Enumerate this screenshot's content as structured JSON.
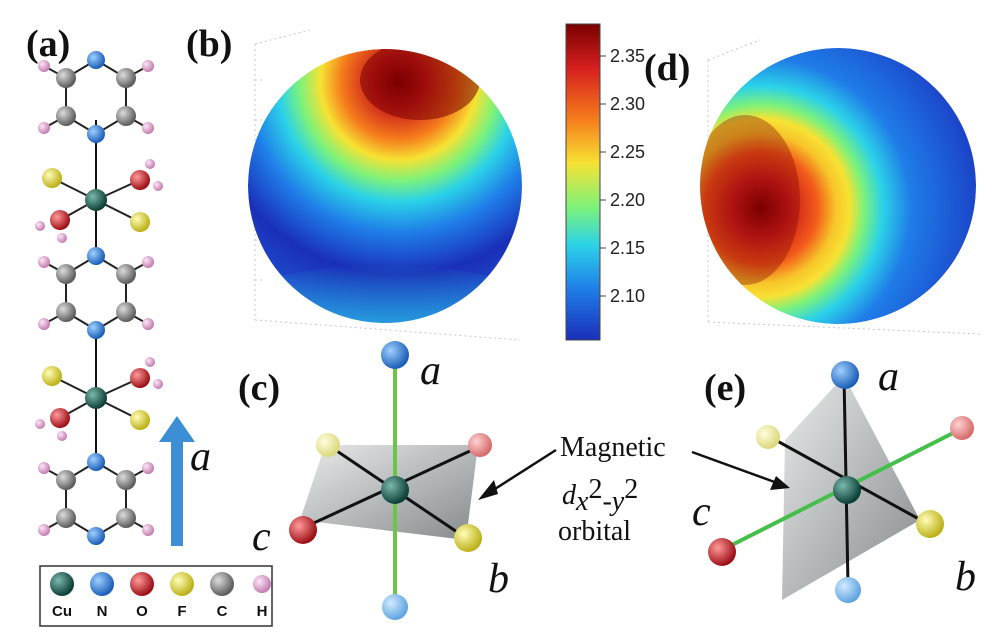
{
  "panels": {
    "a": "(a)",
    "b": "(b)",
    "c": "(c)",
    "d": "(d)",
    "e": "(e)"
  },
  "axis_labels": {
    "a": "a",
    "b": "b",
    "c": "c"
  },
  "colorbar": {
    "ticks": [
      "2.35",
      "2.30",
      "2.25",
      "2.20",
      "2.15",
      "2.10"
    ],
    "colors": [
      "#7a0000",
      "#d71f1f",
      "#f57b1b",
      "#f7e233",
      "#7df27a",
      "#2bd2e8",
      "#1f7de8",
      "#1a2fb8"
    ]
  },
  "annotation": {
    "line1": "Magnetic",
    "d": "d",
    "sub_x": "x",
    "sup_x": "2",
    "sub_dash": "-y",
    "sup_y": "2",
    "line3": "orbital"
  },
  "legend": [
    {
      "label": "Cu",
      "color": "#145c50"
    },
    {
      "label": "N",
      "color": "#2b7fd9"
    },
    {
      "label": "O",
      "color": "#c2282f"
    },
    {
      "label": "F",
      "color": "#e0d93a"
    },
    {
      "label": "C",
      "color": "#8c8c8c"
    },
    {
      "label": "H",
      "color": "#e3a6d6"
    }
  ]
}
